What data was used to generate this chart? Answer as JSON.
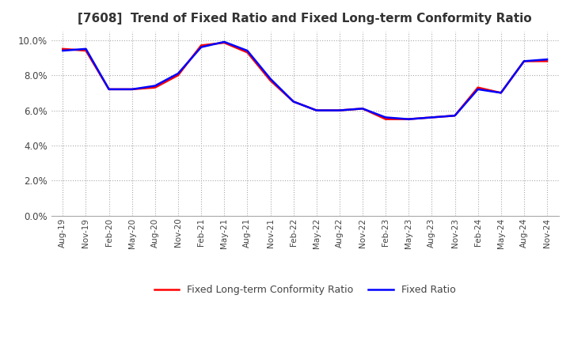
{
  "title": "[7608]  Trend of Fixed Ratio and Fixed Long-term Conformity Ratio",
  "x_labels": [
    "Aug-19",
    "Nov-19",
    "Feb-20",
    "May-20",
    "Aug-20",
    "Nov-20",
    "Feb-21",
    "May-21",
    "Aug-21",
    "Nov-21",
    "Feb-22",
    "May-22",
    "Aug-22",
    "Nov-22",
    "Feb-23",
    "May-23",
    "Aug-23",
    "Nov-23",
    "Feb-24",
    "May-24",
    "Aug-24",
    "Nov-24"
  ],
  "fixed_ratio": [
    9.4,
    9.5,
    7.2,
    7.2,
    7.4,
    8.1,
    9.6,
    9.9,
    9.4,
    7.8,
    6.5,
    6.0,
    6.0,
    6.1,
    5.6,
    5.5,
    5.6,
    5.7,
    7.2,
    7.0,
    8.8,
    8.9
  ],
  "fixed_lt_ratio": [
    9.5,
    9.4,
    7.2,
    7.2,
    7.3,
    8.0,
    9.7,
    9.85,
    9.3,
    7.7,
    6.5,
    6.0,
    6.0,
    6.1,
    5.5,
    5.5,
    5.6,
    5.7,
    7.3,
    7.0,
    8.8,
    8.8
  ],
  "fixed_ratio_color": "#0000ff",
  "fixed_lt_ratio_color": "#ff0000",
  "ylim": [
    0.0,
    10.5
  ],
  "yticks": [
    0.0,
    2.0,
    4.0,
    6.0,
    8.0,
    10.0
  ],
  "background_color": "#ffffff",
  "grid_color": "#aaaaaa",
  "title_fontsize": 11,
  "legend_fixed": "Fixed Ratio",
  "legend_fixed_lt": "Fixed Long-term Conformity Ratio"
}
